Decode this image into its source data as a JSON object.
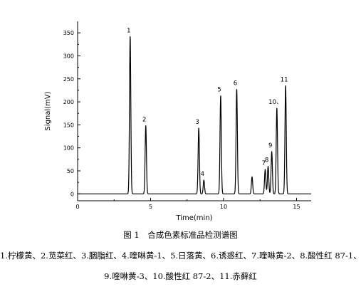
{
  "chart_data": {
    "type": "line",
    "xlabel": "Time(min)",
    "ylabel": "Signal(mV)",
    "xlim": [
      0,
      16
    ],
    "ylim": [
      -15,
      375
    ],
    "xticks": [
      0,
      5,
      10,
      15
    ],
    "yticks": [
      0,
      50,
      100,
      150,
      200,
      250,
      300,
      350
    ],
    "grid": false,
    "baseline": 0,
    "peaks": [
      {
        "label": "1",
        "x": 3.6,
        "y": 342
      },
      {
        "label": "2",
        "x": 4.67,
        "y": 148
      },
      {
        "label": "3",
        "x": 8.3,
        "y": 143
      },
      {
        "label": "4",
        "x": 8.65,
        "y": 30
      },
      {
        "label": "5",
        "x": 9.8,
        "y": 213
      },
      {
        "label": "6",
        "x": 10.9,
        "y": 227
      },
      {
        "label": "",
        "x": 11.95,
        "y": 37
      },
      {
        "label": "7",
        "x": 12.85,
        "y": 53
      },
      {
        "label": "8",
        "x": 13.05,
        "y": 60
      },
      {
        "label": "9",
        "x": 13.3,
        "y": 92
      },
      {
        "label": "10、",
        "x": 13.65,
        "y": 186
      },
      {
        "label": "11",
        "x": 14.25,
        "y": 235
      }
    ]
  },
  "caption": {
    "title": "图 1　合成色素标准品检测谱图",
    "legend_line_1": "1.柠檬黄、2.苋菜红、3.胭脂红、4.喹啉黄-1、5.日落黄、6.诱惑红、7.喹啉黄-2、8.酸性红 87-1、",
    "legend_line_2": "9.喹啉黄-3、10.酸性红 87-2、11.赤藓红"
  }
}
